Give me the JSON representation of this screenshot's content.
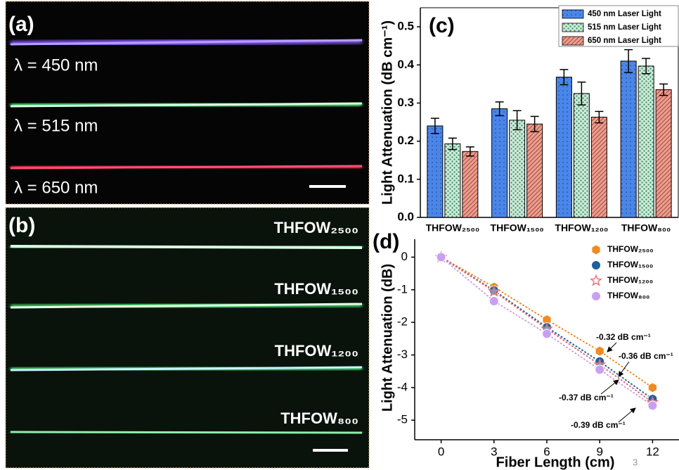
{
  "panels": {
    "a": {
      "label": "(a)",
      "lines": [
        "λ = 450 nm",
        "λ = 515 nm",
        "λ = 650 nm"
      ]
    },
    "b": {
      "label": "(b)",
      "lines": [
        "THFOW₂₅₀₀",
        "THFOW₁₅₀₀",
        "THFOW₁₂₀₀",
        "THFOW₈₀₀"
      ]
    },
    "page_number": "3"
  },
  "chart_data": [
    {
      "type": "bar",
      "label": "(c)",
      "y_label": "Light Attenuation (dB cm⁻¹)",
      "categories": [
        "THFOW₂₅₀₀",
        "THFOW₁₅₀₀",
        "THFOW₁₂₀₀",
        "THFOW₈₀₀"
      ],
      "series": [
        {
          "name": "450 nm Laser Light",
          "color": "#4a86e8",
          "values": [
            0.24,
            0.285,
            0.368,
            0.41
          ],
          "errors": [
            0.02,
            0.018,
            0.02,
            0.03
          ]
        },
        {
          "name": "515 nm Laser Light",
          "color": "#cfe9d9",
          "values": [
            0.193,
            0.255,
            0.325,
            0.397
          ],
          "errors": [
            0.015,
            0.025,
            0.03,
            0.02
          ]
        },
        {
          "name": "650 nm Laser Light",
          "color": "#e8a090",
          "values": [
            0.173,
            0.245,
            0.263,
            0.335
          ],
          "errors": [
            0.012,
            0.02,
            0.015,
            0.015
          ]
        }
      ],
      "ylim": [
        0,
        0.55
      ],
      "yticks": [
        {
          "value": 0,
          "label": "0.0"
        },
        0.1,
        0.2,
        0.3,
        0.4,
        0.5
      ],
      "legend": "top-right"
    },
    {
      "type": "scatter",
      "label": "(d)",
      "x_label": "Fiber Length (cm)",
      "y_label": "Light Attenuation (dB)",
      "x": [
        0,
        3,
        6,
        9,
        12
      ],
      "series": [
        {
          "name": "THFOW₂₅₀₀",
          "color": "#f08a24",
          "marker": "hexagon",
          "values": [
            0,
            -0.92,
            -1.92,
            -2.88,
            -4.0
          ]
        },
        {
          "name": "THFOW₁₅₀₀",
          "color": "#1f5fa0",
          "marker": "circle",
          "values": [
            0,
            -1.02,
            -2.15,
            -3.2,
            -4.35
          ]
        },
        {
          "name": "THFOW₁₂₀₀",
          "color": "#e86a6a",
          "marker": "star",
          "values": [
            0,
            -1.05,
            -2.2,
            -3.3,
            -4.45
          ]
        },
        {
          "name": "THFOW₈₀₀",
          "color": "#c9a0f0",
          "marker": "circle",
          "values": [
            0,
            -1.35,
            -2.35,
            -3.45,
            -4.55
          ]
        }
      ],
      "annotations": [
        "-0.32 dB cm⁻¹",
        "-0.36 dB cm⁻¹",
        "-0.37 dB cm⁻¹",
        "-0.39 dB cm⁻¹"
      ],
      "xlim": [
        -1.5,
        13.5
      ],
      "ylim": [
        -5.6,
        0.55
      ],
      "xticks": [
        0,
        3,
        6,
        9,
        12
      ],
      "yticks": [
        0,
        -1,
        -2,
        -3,
        -4,
        -5
      ],
      "line_style": "dotted",
      "legend": "top-right"
    }
  ]
}
